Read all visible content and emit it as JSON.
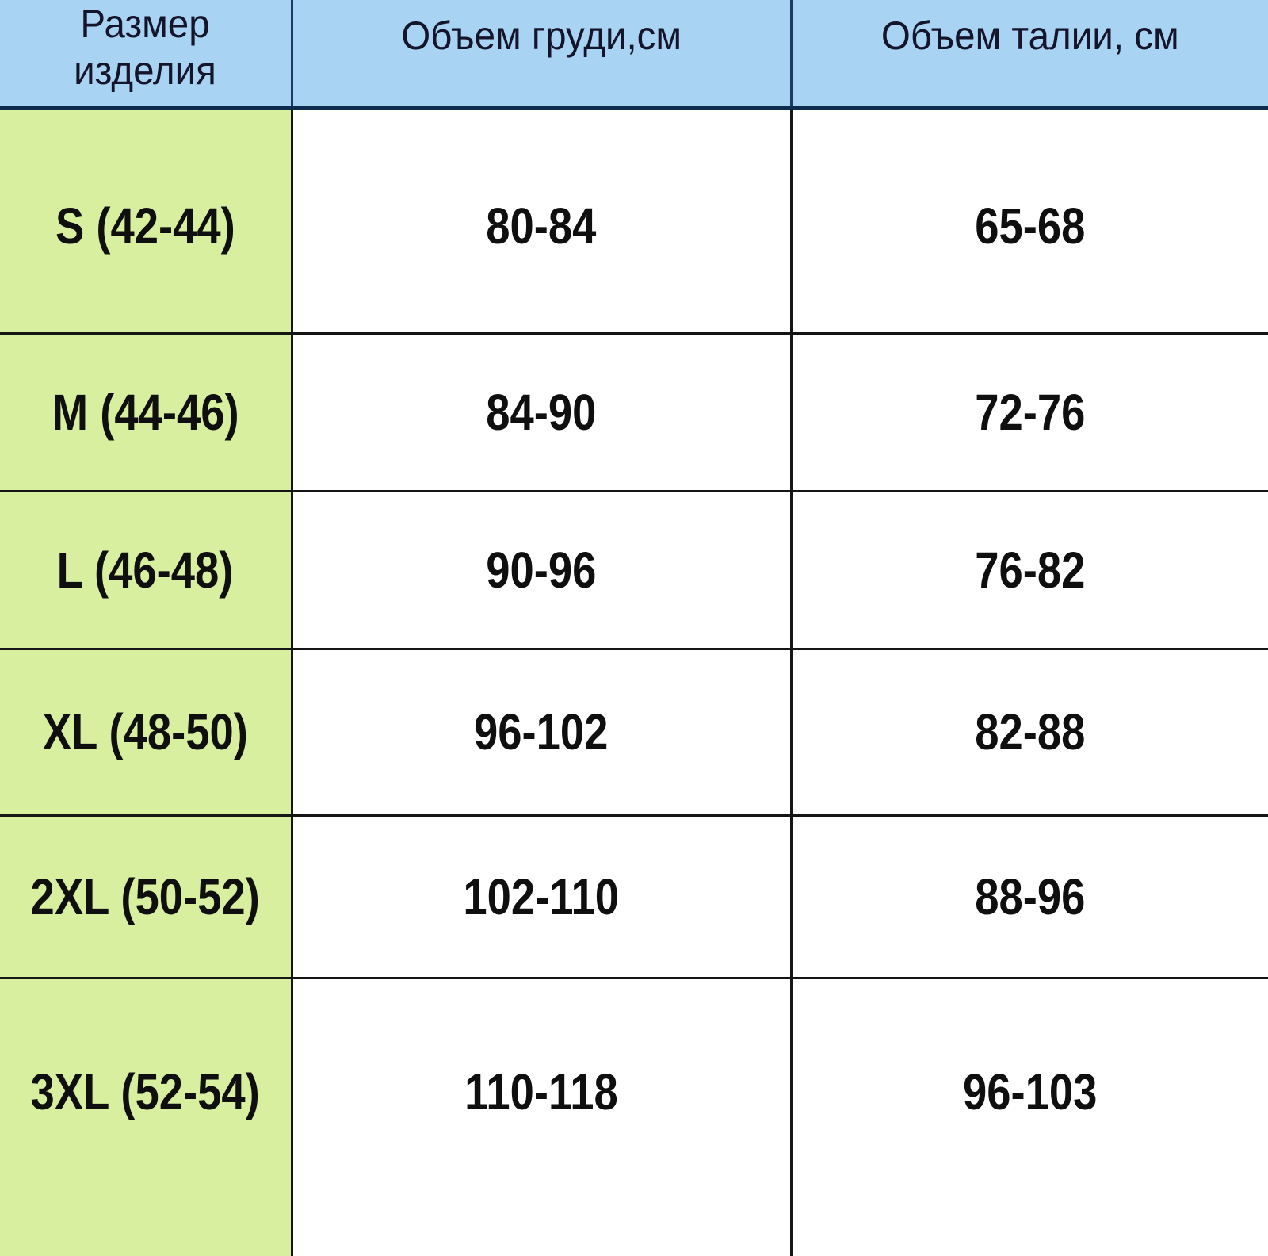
{
  "table": {
    "columns": [
      "Размер изделия",
      "Объем груди,см",
      "Объем талии, см"
    ],
    "rows": [
      {
        "size": "S (42-44)",
        "chest": "80-84",
        "waist": "65-68"
      },
      {
        "size": "M (44-46)",
        "chest": "84-90",
        "waist": "72-76"
      },
      {
        "size": "L (46-48)",
        "chest": "90-96",
        "waist": "76-82"
      },
      {
        "size": "XL (48-50)",
        "chest": "96-102",
        "waist": "82-88"
      },
      {
        "size": "2XL (50-52)",
        "chest": "102-110",
        "waist": "88-96"
      },
      {
        "size": "3XL (52-54)",
        "chest": "110-118",
        "waist": "96-103"
      }
    ]
  },
  "colors": {
    "header_bg": "#a9d3f2",
    "size_col_bg": "#d9efa0",
    "cell_bg": "#ffffff",
    "grid_line": "#151515",
    "header_line": "#0d2b4d",
    "header_divider": "#1f3864",
    "text": "#0f0f0f",
    "header_text": "#14142b"
  },
  "chart_data": {
    "type": "table",
    "title": "",
    "columns": [
      "Размер изделия",
      "Объем груди,см",
      "Объем талии, см"
    ],
    "rows": [
      [
        "S (42-44)",
        "80-84",
        "65-68"
      ],
      [
        "M (44-46)",
        "84-90",
        "72-76"
      ],
      [
        "L (46-48)",
        "90-96",
        "76-82"
      ],
      [
        "XL (48-50)",
        "96-102",
        "82-88"
      ],
      [
        "2XL (50-52)",
        "102-110",
        "88-96"
      ],
      [
        "3XL (52-54)",
        "110-118",
        "96-103"
      ]
    ]
  }
}
